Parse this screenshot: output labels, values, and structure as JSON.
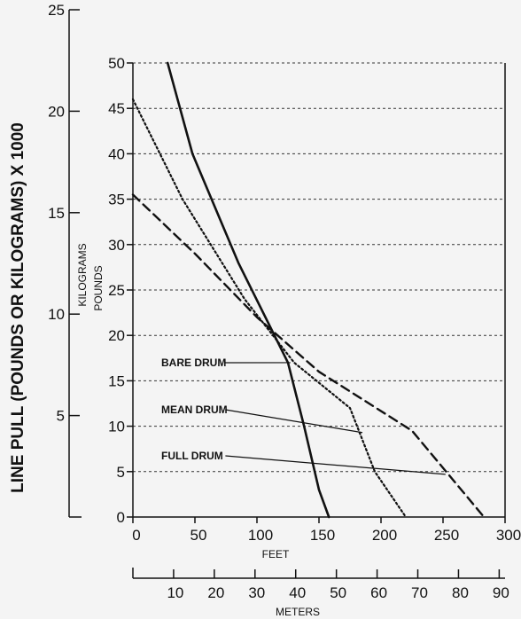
{
  "chart_data": {
    "type": "line",
    "title": "",
    "axes": {
      "pounds": {
        "label": "POUNDS",
        "range": [
          0,
          50
        ],
        "ticks": [
          0,
          5,
          10,
          15,
          20,
          25,
          30,
          35,
          40,
          45,
          50
        ]
      },
      "kilograms": {
        "label": "KILOGRAMS",
        "range": [
          0,
          25
        ],
        "ticks": [
          5,
          10,
          15,
          20,
          25
        ]
      },
      "outer_label": "LINE PULL (POUNDS OR KILOGRAMS) X 1000",
      "feet": {
        "label": "FEET",
        "range": [
          0,
          300
        ],
        "ticks": [
          0,
          50,
          100,
          150,
          200,
          250,
          300
        ]
      },
      "meters": {
        "label": "METERS",
        "range": [
          0,
          91.44
        ],
        "ticks": [
          10,
          20,
          30,
          40,
          50,
          60,
          70,
          80,
          90
        ]
      }
    },
    "grid": {
      "horizontal": true,
      "style": "dashed"
    },
    "series": [
      {
        "name": "BARE DRUM",
        "line_style": "solid",
        "x": [
          28,
          48,
          85,
          125,
          138,
          150,
          158
        ],
        "y": [
          50,
          40,
          28,
          17,
          10,
          3,
          0
        ]
      },
      {
        "name": "MEAN DRUM",
        "line_style": "dotted",
        "x": [
          0,
          40,
          90,
          130,
          175,
          195,
          220
        ],
        "y": [
          46,
          35,
          24,
          17,
          12,
          5,
          0
        ]
      },
      {
        "name": "FULL DRUM",
        "line_style": "dashed",
        "x": [
          0,
          50,
          100,
          150,
          225,
          283
        ],
        "y": [
          35.5,
          29,
          22,
          16,
          9.5,
          0
        ]
      }
    ],
    "annotations": [
      {
        "text": "BARE DRUM",
        "series": "BARE DRUM",
        "target": [
          127,
          17
        ]
      },
      {
        "text": "MEAN DRUM",
        "series": "MEAN DRUM",
        "target": [
          185,
          9.3
        ]
      },
      {
        "text": "FULL DRUM",
        "series": "FULL DRUM",
        "target": [
          252,
          4.7
        ]
      }
    ]
  }
}
